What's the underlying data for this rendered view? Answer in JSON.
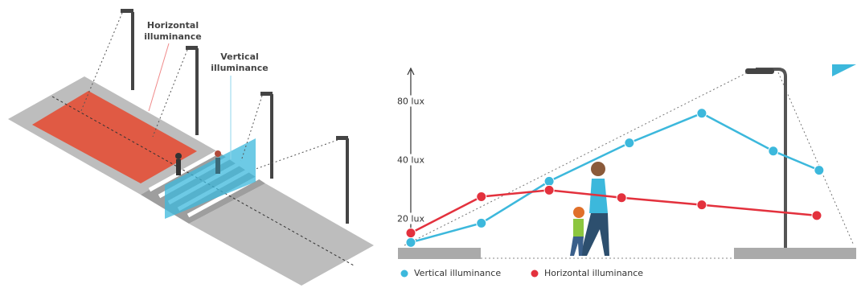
{
  "diagram": {
    "horizontal_label": [
      "Horizontal",
      "illuminance"
    ],
    "vertical_label": [
      "Vertical",
      "illuminance"
    ]
  },
  "chart_data": {
    "type": "line",
    "log_y": true,
    "ylim": [
      14,
      119
    ],
    "yticks": [
      {
        "value": 20,
        "label": "20 lux"
      },
      {
        "value": 40,
        "label": "40 lux"
      },
      {
        "value": 80,
        "label": "80 lux"
      }
    ],
    "xlim": [
      0,
      100
    ],
    "series": [
      {
        "name": "Vertical illuminance",
        "color": "#3cb8dc",
        "x": [
          2.8,
          18.2,
          33.0,
          50.5,
          66.3,
          81.9,
          91.9
        ],
        "values": [
          15.2,
          19.1,
          31.3,
          49.3,
          70.0,
          44.8,
          35.7
        ]
      },
      {
        "name": "Horizontal illuminance",
        "color": "#e3313d",
        "x": [
          2.8,
          18.2,
          33.0,
          48.8,
          66.3,
          91.4
        ],
        "values": [
          17.0,
          26.1,
          28.2,
          25.8,
          23.7,
          20.9
        ]
      }
    ]
  }
}
